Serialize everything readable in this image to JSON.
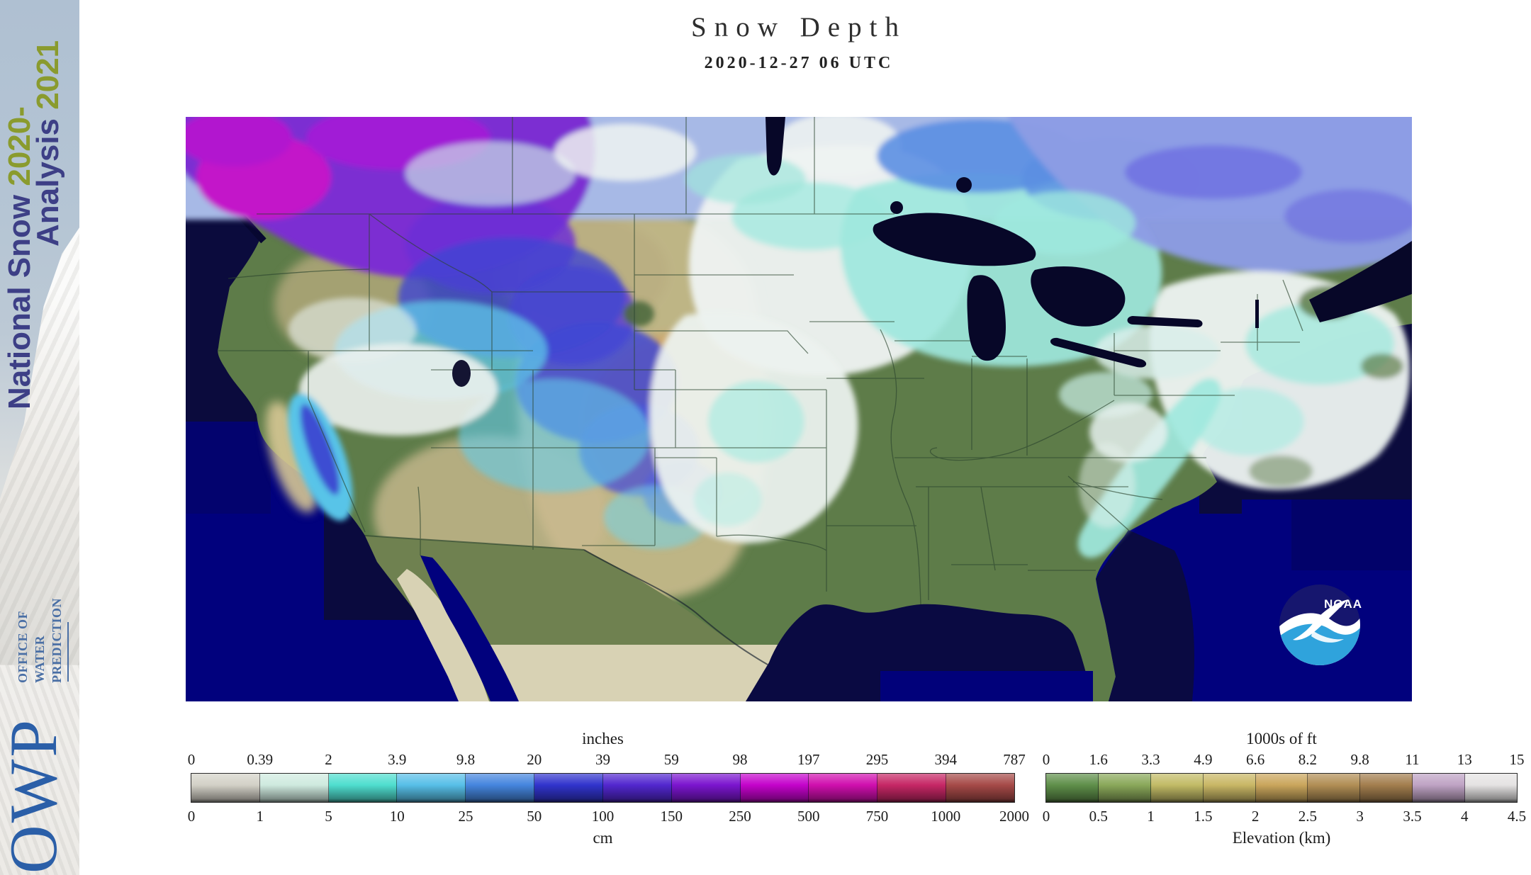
{
  "sidebar": {
    "season_line1_label": "National Snow ",
    "season_line1_year": "2020-",
    "season_line2_label": "Analysis ",
    "season_line2_year": "2021",
    "org_line1": "OFFICE OF",
    "org_line2": "WATER",
    "org_line3": "PREDICTION",
    "logo": "OWP",
    "label_color": "#3d3f86",
    "year_color": "#8a9b2e",
    "org_color": "#4a6fa5",
    "logo_color": "#2b5fa8"
  },
  "header": {
    "title": "Snow Depth",
    "datetime": "2020-12-27 06 UTC"
  },
  "map": {
    "noaa_logo_label": "NOAA",
    "ocean_color": "#01017d",
    "ocean_dark_color": "#0b0b3d",
    "land_color": "#5e7c49",
    "plains_color": "#c7ba8b",
    "mexico_nodata_color": "#d8d2b4",
    "lake_color": "#070728",
    "noaa_circle_color": "#16166e",
    "noaa_wave_color": "#2fa3dc"
  },
  "snow_legend": {
    "unit_top": "inches",
    "unit_bottom": "cm",
    "labels_top": [
      "0",
      "0.39",
      "2",
      "3.9",
      "9.8",
      "20",
      "39",
      "59",
      "98",
      "197",
      "295",
      "394",
      "787"
    ],
    "labels_bottom": [
      "0",
      "1",
      "5",
      "10",
      "25",
      "50",
      "100",
      "150",
      "250",
      "500",
      "750",
      "1000",
      "2000"
    ],
    "segment_colors": [
      "#d3d1c7",
      "#cfeadf",
      "#4fdecf",
      "#57bfe8",
      "#4585de",
      "#3134cd",
      "#5227cf",
      "#7b15cf",
      "#c403cb",
      "#d00fae",
      "#c62765",
      "#a64a48"
    ]
  },
  "elevation_legend": {
    "unit_top": "1000s of ft",
    "caption": "Elevation (km)",
    "labels_top": [
      "0",
      "1.6",
      "3.3",
      "4.9",
      "6.6",
      "8.2",
      "9.8",
      "11",
      "13",
      "15"
    ],
    "labels_bottom": [
      "0",
      "0.5",
      "1",
      "1.5",
      "2",
      "2.5",
      "3",
      "3.5",
      "4",
      "4.5"
    ],
    "segment_colors": [
      "#5f8f4a",
      "#8aa85a",
      "#c2bb66",
      "#c9b765",
      "#caa65c",
      "#b18e55",
      "#a37e4e",
      "#bfa3c4",
      "#e5e3e3"
    ]
  }
}
